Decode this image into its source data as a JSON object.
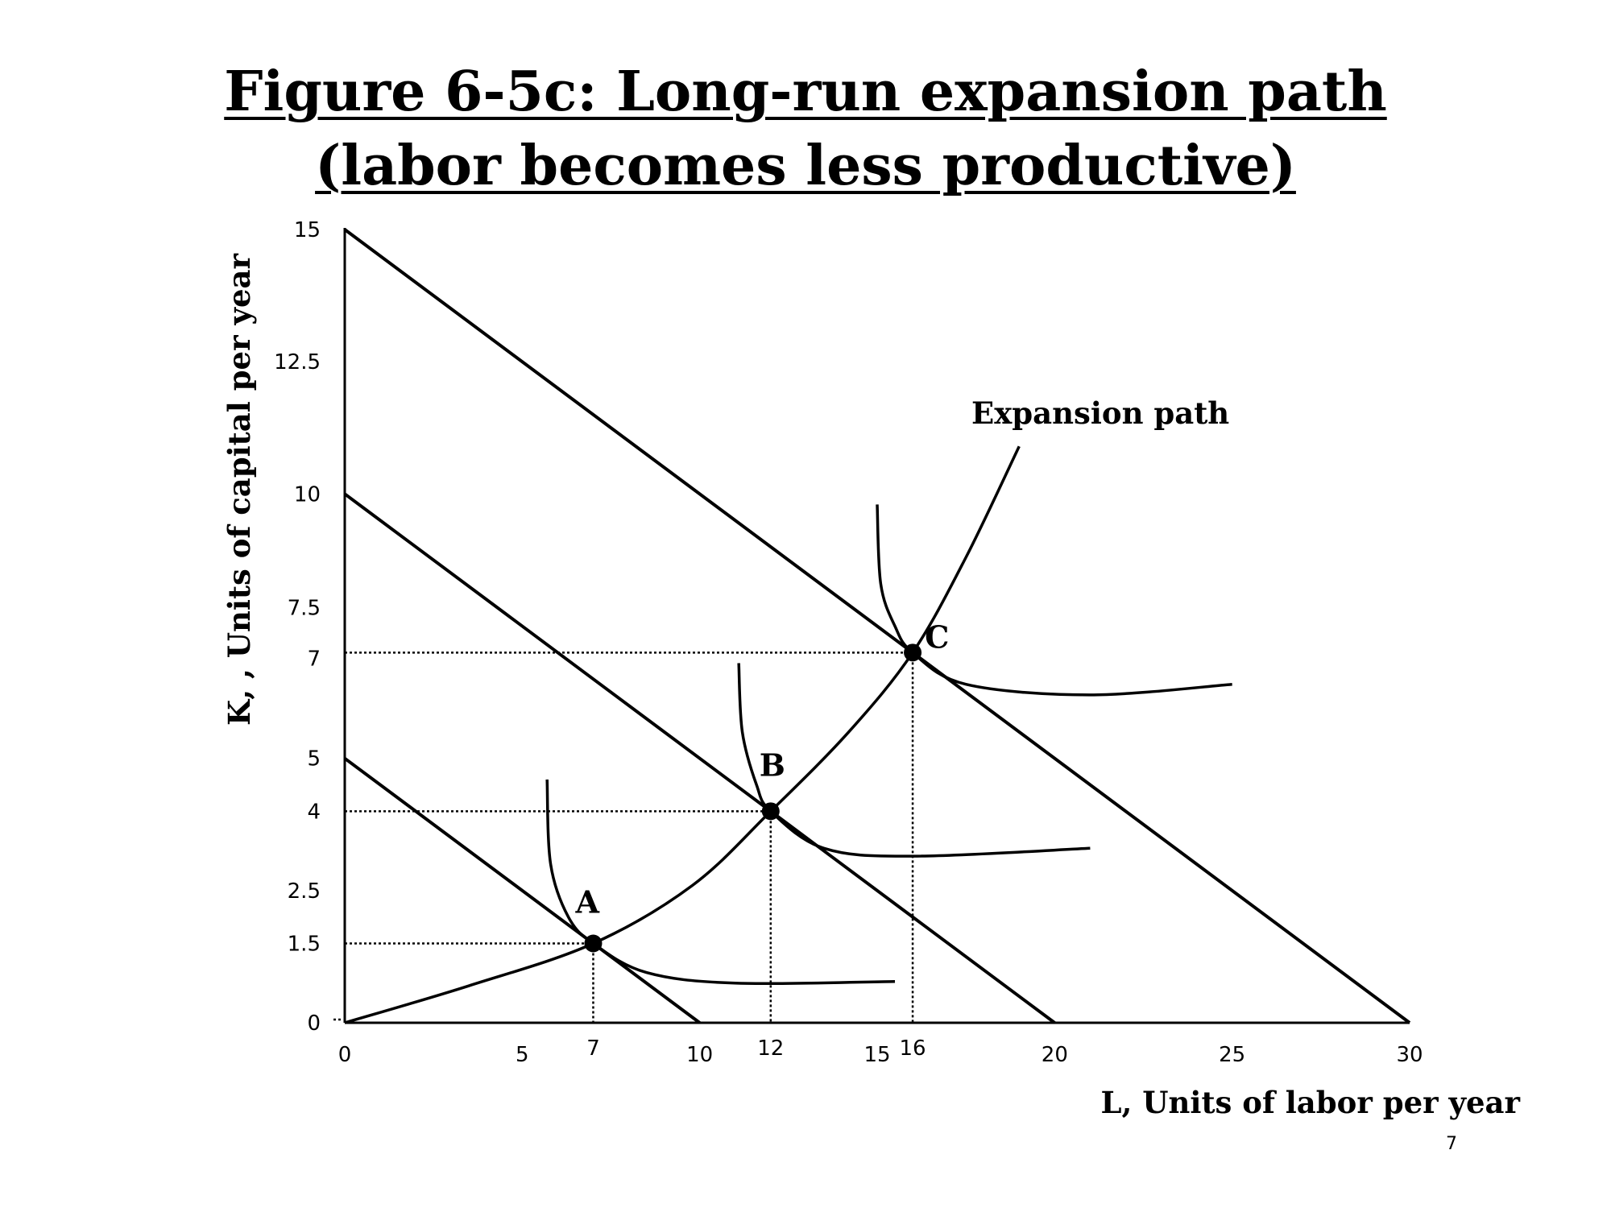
{
  "title_line1": "Figure 6-5c: Long-run expansion path",
  "title_line2": "(labor becomes less productive)",
  "page_number": "7",
  "chart_data": {
    "type": "line",
    "xlabel": "L, Units of labor per year",
    "ylabel": "K, , Units of capital per year",
    "xlim": [
      0,
      30
    ],
    "ylim": [
      0,
      15
    ],
    "x_ticks": [
      {
        "value": 0,
        "label": "0"
      },
      {
        "value": 5,
        "label": "5"
      },
      {
        "value": 10,
        "label": "10"
      },
      {
        "value": 15,
        "label": "15"
      },
      {
        "value": 20,
        "label": "20"
      },
      {
        "value": 25,
        "label": "25"
      },
      {
        "value": 30,
        "label": "30"
      }
    ],
    "x_marked_ticks": [
      {
        "value": 7,
        "label": "7"
      },
      {
        "value": 12,
        "label": "12"
      },
      {
        "value": 16,
        "label": "16"
      }
    ],
    "y_ticks": [
      {
        "value": 0,
        "label": "0"
      },
      {
        "value": 1.5,
        "label": "1.5"
      },
      {
        "value": 2.5,
        "label": "2.5"
      },
      {
        "value": 4,
        "label": "4"
      },
      {
        "value": 5,
        "label": "5"
      },
      {
        "value": 7,
        "label": "7"
      },
      {
        "value": 7.5,
        "label": "7.5"
      },
      {
        "value": 10,
        "label": "10"
      },
      {
        "value": 12.5,
        "label": "12.5"
      },
      {
        "value": 15,
        "label": "15"
      }
    ],
    "isocost_lines": [
      {
        "from": [
          0,
          5
        ],
        "to": [
          10,
          0
        ]
      },
      {
        "from": [
          0,
          10
        ],
        "to": [
          20,
          0
        ]
      },
      {
        "from": [
          0,
          15
        ],
        "to": [
          30,
          0
        ]
      }
    ],
    "isoquants": [
      {
        "points": [
          [
            5.7,
            4.6
          ],
          [
            5.8,
            3.0
          ],
          [
            6.3,
            2.0
          ],
          [
            7.0,
            1.5
          ],
          [
            8.5,
            0.95
          ],
          [
            11.0,
            0.75
          ],
          [
            15.5,
            0.78
          ]
        ]
      },
      {
        "points": [
          [
            11.1,
            6.8
          ],
          [
            11.2,
            5.5
          ],
          [
            11.6,
            4.5
          ],
          [
            12.0,
            4.0
          ],
          [
            13.5,
            3.3
          ],
          [
            16.0,
            3.15
          ],
          [
            21.0,
            3.3
          ]
        ]
      },
      {
        "points": [
          [
            15.0,
            9.8
          ],
          [
            15.1,
            8.3
          ],
          [
            15.5,
            7.5
          ],
          [
            16.0,
            7.0
          ],
          [
            17.5,
            6.4
          ],
          [
            21.0,
            6.2
          ],
          [
            25.0,
            6.4
          ]
        ]
      }
    ],
    "expansion_path": {
      "label": "Expansion path",
      "points": [
        [
          0,
          0
        ],
        [
          3.5,
          0.7
        ],
        [
          7.0,
          1.5
        ],
        [
          9.8,
          2.6
        ],
        [
          12.0,
          4.0
        ],
        [
          14.2,
          5.5
        ],
        [
          16.0,
          7.0
        ],
        [
          17.5,
          8.8
        ],
        [
          19.0,
          10.9
        ]
      ]
    },
    "points": [
      {
        "label": "A",
        "x": 7,
        "y": 1.5
      },
      {
        "label": "B",
        "x": 12,
        "y": 4
      },
      {
        "label": "C",
        "x": 16,
        "y": 7
      }
    ]
  }
}
